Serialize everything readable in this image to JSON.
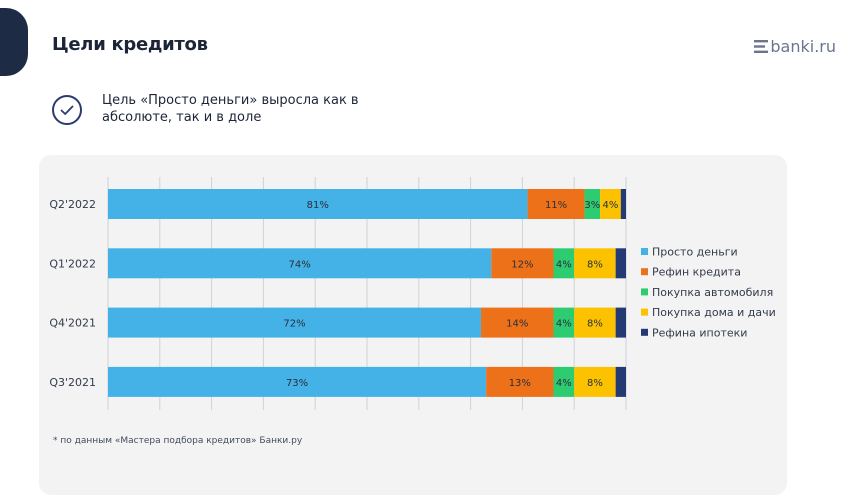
{
  "header": {
    "title": "Цели кредитов",
    "logo_text": "banki.ru"
  },
  "headline": {
    "text": "Цель «Просто деньги» выросла как в абсолюте, так и в доле"
  },
  "footnote": "* по данным «Мастера подбора кредитов» Банки.ру",
  "chart_data": {
    "type": "bar",
    "orientation": "horizontal",
    "stacked": true,
    "percent": true,
    "categories": [
      "Q2'2022",
      "Q1'2022",
      "Q4'2021",
      "Q3'2021"
    ],
    "series": [
      {
        "name": "Просто деньги",
        "color": "#44b2e6",
        "values": [
          81,
          74,
          72,
          73
        ],
        "labels": [
          "81%",
          "74%",
          "72%",
          "73%"
        ]
      },
      {
        "name": "Рефин кредита",
        "color": "#ed7118",
        "values": [
          11,
          12,
          14,
          13
        ],
        "labels": [
          "11%",
          "12%",
          "14%",
          "13%"
        ]
      },
      {
        "name": "Покупка автомобиля",
        "color": "#2ecc71",
        "values": [
          3,
          4,
          4,
          4
        ],
        "labels": [
          "3%",
          "4%",
          "4%",
          "4%"
        ]
      },
      {
        "name": "Покупка дома и дачи",
        "color": "#fcc200",
        "values": [
          4,
          8,
          8,
          8
        ],
        "labels": [
          "4%",
          "8%",
          "8%",
          "8%"
        ]
      },
      {
        "name": "Рефина ипотеки",
        "color": "#243a73",
        "values": [
          1,
          2,
          2,
          2
        ],
        "labels": [
          "",
          "",
          "",
          ""
        ]
      }
    ],
    "xlim": [
      0,
      100
    ],
    "grid": true,
    "legend_position": "right"
  }
}
